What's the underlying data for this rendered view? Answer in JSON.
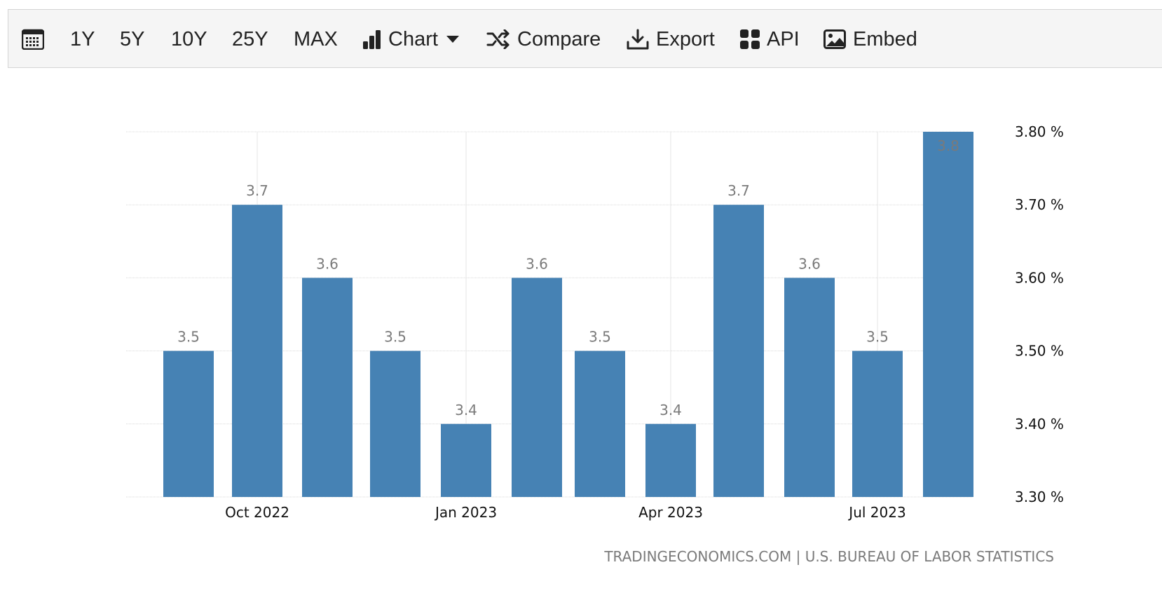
{
  "toolbar": {
    "ranges": [
      "1Y",
      "5Y",
      "10Y",
      "25Y",
      "MAX"
    ],
    "chart_label": "Chart",
    "compare_label": "Compare",
    "export_label": "Export",
    "api_label": "API",
    "embed_label": "Embed",
    "icons": {
      "calendar": "calendar-icon",
      "chart": "bar-chart-icon",
      "caret": "caret-down-icon",
      "compare": "shuffle-icon",
      "export": "download-icon",
      "api": "grid-icon",
      "embed": "image-icon"
    }
  },
  "chart_data": {
    "type": "bar",
    "categories": [
      "2022-09",
      "2022-10",
      "2022-11",
      "2022-12",
      "2023-01",
      "2023-02",
      "2023-03",
      "2023-04",
      "2023-05",
      "2023-06",
      "2023-07",
      "2023-08"
    ],
    "values": [
      3.5,
      3.7,
      3.6,
      3.5,
      3.4,
      3.6,
      3.5,
      3.4,
      3.7,
      3.6,
      3.5,
      3.8
    ],
    "value_labels": [
      "3.5",
      "3.7",
      "3.6",
      "3.5",
      "3.4",
      "3.6",
      "3.5",
      "3.4",
      "3.7",
      "3.6",
      "3.5",
      "3.8"
    ],
    "x_ticks": [
      {
        "category": "2022-10",
        "label": "Oct 2022"
      },
      {
        "category": "2023-01",
        "label": "Jan 2023"
      },
      {
        "category": "2023-04",
        "label": "Apr 2023"
      },
      {
        "category": "2023-07",
        "label": "Jul 2023"
      }
    ],
    "y_ticks": [
      {
        "value": 3.8,
        "label": "3.80 %"
      },
      {
        "value": 3.7,
        "label": "3.70 %"
      },
      {
        "value": 3.6,
        "label": "3.60 %"
      },
      {
        "value": 3.5,
        "label": "3.50 %"
      },
      {
        "value": 3.4,
        "label": "3.40 %"
      },
      {
        "value": 3.3,
        "label": "3.30 %"
      }
    ],
    "ylim": [
      3.3,
      3.8
    ],
    "y_axis_position": "right",
    "grid": true,
    "bar_color": "#4682b4",
    "source": "TRADINGECONOMICS.COM | U.S. BUREAU OF LABOR STATISTICS"
  }
}
